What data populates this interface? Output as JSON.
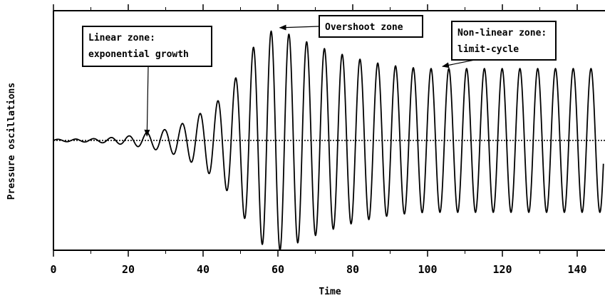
{
  "chart_data": {
    "type": "line",
    "title": "",
    "xlabel": "Time",
    "ylabel": "Pressure oscillations",
    "xlim": [
      0,
      147
    ],
    "ylim": [
      -1.0,
      1.0
    ],
    "xticks": [
      0,
      20,
      40,
      60,
      80,
      100,
      120,
      140
    ],
    "xtick_labels": [
      "0",
      "20",
      "40",
      "60",
      "80",
      "100",
      "120",
      "140"
    ],
    "y_tick_labels_shown": false,
    "grid": false,
    "legend": "none",
    "baseline": {
      "y": 0,
      "style": "dotted"
    },
    "series": [
      {
        "x": [
          0,
          5,
          10,
          15,
          20,
          25,
          30,
          35,
          40,
          44,
          47,
          49,
          51,
          53,
          55,
          57,
          59,
          61,
          63,
          65,
          70,
          75,
          80,
          85,
          90,
          95,
          100,
          105,
          110,
          120,
          130,
          140,
          147
        ],
        "y": [
          0.01,
          0.012,
          0.015,
          0.025,
          0.04,
          0.07,
          0.1,
          0.16,
          0.26,
          0.36,
          0.48,
          0.58,
          0.7,
          0.82,
          0.92,
          0.97,
          1.0,
          0.99,
          0.96,
          0.93,
          0.86,
          0.8,
          0.75,
          0.71,
          0.68,
          0.66,
          0.65,
          0.65,
          0.65,
          0.65,
          0.65,
          0.65,
          0.65
        ],
        "period": 4.75,
        "note_style": "solid oscillation; values are the oscillation amplitude envelope"
      }
    ],
    "annotations": [
      {
        "text_lines": [
          "Linear zone:",
          "exponential growth"
        ],
        "arrow_to": {
          "x": 25,
          "y": 0.04
        }
      },
      {
        "text_lines": [
          "Overshoot zone"
        ],
        "arrow_to": {
          "x": 60.5,
          "y": 1.02
        }
      },
      {
        "text_lines": [
          "Non-linear zone:",
          "limit-cycle"
        ],
        "arrow_to": {
          "x": 104,
          "y": 0.67
        }
      }
    ]
  }
}
